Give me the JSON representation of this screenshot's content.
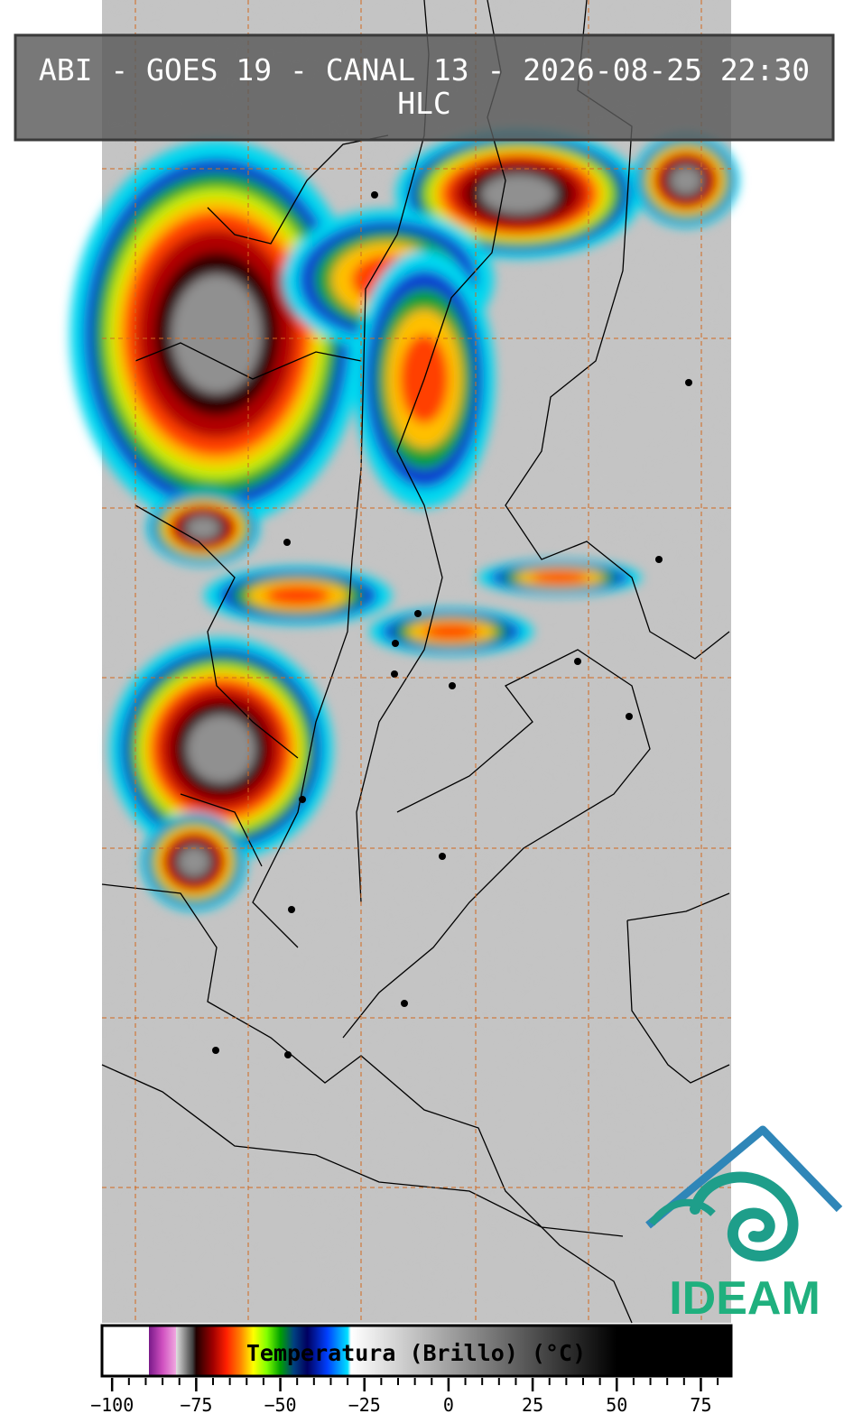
{
  "header": {
    "title": "ABI - GOES 19 - CANAL 13 - 2026-08-25 22:30",
    "subtitle": "HLC"
  },
  "logo": {
    "text": "IDEAM"
  },
  "chart_data": {
    "type": "colorbar",
    "title": "Temperatura (Brillo) (°C)",
    "xlim": [
      -103,
      84
    ],
    "xticks": [
      {
        "value": -100,
        "label": "−100"
      },
      {
        "value": -75,
        "label": "−75"
      },
      {
        "value": -50,
        "label": "−50"
      },
      {
        "value": -25,
        "label": "−25"
      },
      0,
      25,
      50,
      75
    ],
    "minor_tick_step": 5,
    "colormap": [
      {
        "value": -103,
        "color": "#ffffff"
      },
      {
        "value": -89,
        "color": "#ffffff"
      },
      {
        "value": -89,
        "color": "#7a1a8a"
      },
      {
        "value": -85,
        "color": "#d050c0"
      },
      {
        "value": -81,
        "color": "#f0a8e0"
      },
      {
        "value": -81,
        "color": "#e0e0e0"
      },
      {
        "value": -76,
        "color": "#404040"
      },
      {
        "value": -75,
        "color": "#200000"
      },
      {
        "value": -70,
        "color": "#a00000"
      },
      {
        "value": -66,
        "color": "#ff2000"
      },
      {
        "value": -62,
        "color": "#ff8000"
      },
      {
        "value": -58,
        "color": "#ffff00"
      },
      {
        "value": -54,
        "color": "#80ff00"
      },
      {
        "value": -50,
        "color": "#00a000"
      },
      {
        "value": -46,
        "color": "#004080"
      },
      {
        "value": -42,
        "color": "#000060"
      },
      {
        "value": -36,
        "color": "#0040ff"
      },
      {
        "value": -30,
        "color": "#00e0ff"
      },
      {
        "value": -29,
        "color": "#ffffff"
      },
      {
        "value": 50,
        "color": "#000000"
      },
      {
        "value": 84,
        "color": "#000000"
      }
    ]
  }
}
